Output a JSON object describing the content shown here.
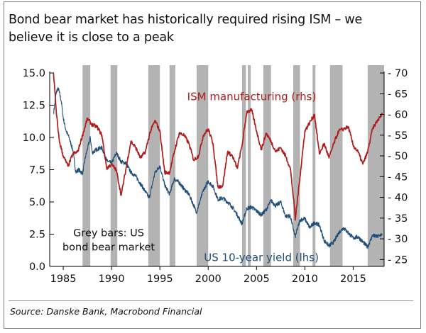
{
  "title_lines": [
    "Bond bear market has historically required rising ISM – we",
    "believe it is close to a peak"
  ],
  "source": "Source: Danske Bank, Macrobond Financial",
  "colors": {
    "us10y": "#1f4e79",
    "ism": "#b01c1c",
    "bars": "#b3b3b3",
    "axis": "#000000"
  },
  "chart_data": {
    "type": "line",
    "title": "Bond bear market has historically required rising ISM – we believe it is close to a peak",
    "x_range": [
      1983.6,
      2018.2
    ],
    "x_ticks": [
      1985,
      1990,
      1995,
      2000,
      2005,
      2010,
      2015
    ],
    "left_axis": {
      "label": "US 10-year yield (lhs)",
      "range": [
        0,
        15
      ],
      "ticks": [
        0.0,
        2.5,
        5.0,
        7.5,
        10.0,
        12.5,
        15.0
      ],
      "tick_labels": [
        "0.0",
        "2.5",
        "5.0",
        "7.5",
        "10.0",
        "12.5",
        "15.0"
      ]
    },
    "right_axis": {
      "label": "ISM manufacturing (rhs)",
      "range": [
        23.35,
        70
      ],
      "ticks": [
        25,
        30,
        35,
        40,
        45,
        50,
        55,
        60,
        65,
        70
      ],
      "tick_labels": [
        "25",
        "30",
        "35",
        "40",
        "45",
        "50",
        "55",
        "60",
        "65",
        "70"
      ]
    },
    "bear_market_periods": [
      [
        1987.0,
        1987.8
      ],
      [
        1989.9,
        1990.6
      ],
      [
        1993.8,
        1995.0
      ],
      [
        1996.0,
        1996.6
      ],
      [
        1998.8,
        2000.0
      ],
      [
        2003.5,
        2003.9
      ],
      [
        2004.1,
        2004.4
      ],
      [
        2005.7,
        2006.5
      ],
      [
        2008.8,
        2009.5
      ],
      [
        2010.8,
        2011.1
      ],
      [
        2012.6,
        2013.9
      ],
      [
        2016.5,
        2018.2
      ]
    ],
    "annotations": [
      {
        "text": "ISM manufacturing (rhs)",
        "x": 2004.5,
        "y_rhs": 64.3
      },
      {
        "text": "US 10-year yield (lhs)",
        "x": 2005.5,
        "y_lhs": 0.7
      },
      {
        "text": "Grey bars: US",
        "x": 1989.7,
        "y_lhs": 2.6
      },
      {
        "text": "bond bear market",
        "x": 1989.7,
        "y_lhs": 1.5
      }
    ],
    "series": [
      {
        "name": "US 10-year yield (lhs)",
        "axis": "left",
        "x": [
          1984.0,
          1984.3,
          1984.5,
          1984.8,
          1985.0,
          1985.3,
          1985.6,
          1986.0,
          1986.3,
          1986.6,
          1987.0,
          1987.3,
          1987.8,
          1988.0,
          1988.5,
          1989.0,
          1989.5,
          1990.0,
          1990.5,
          1991.0,
          1991.5,
          1992.0,
          1992.5,
          1993.0,
          1993.5,
          1993.9,
          1994.5,
          1995.0,
          1995.5,
          1996.0,
          1996.5,
          1997.0,
          1997.5,
          1998.0,
          1998.8,
          1999.0,
          1999.5,
          2000.0,
          2000.5,
          2001.0,
          2001.5,
          2002.0,
          2002.5,
          2003.0,
          2003.5,
          2004.0,
          2004.5,
          2005.0,
          2005.5,
          2006.0,
          2006.5,
          2007.0,
          2007.5,
          2008.0,
          2008.5,
          2008.9,
          2009.0,
          2009.5,
          2010.0,
          2010.5,
          2011.0,
          2011.5,
          2012.0,
          2012.5,
          2013.0,
          2013.5,
          2014.0,
          2014.5,
          2015.0,
          2015.5,
          2016.0,
          2016.5,
          2017.0,
          2017.5,
          2018.0
        ],
        "values": [
          11.9,
          13.6,
          13.8,
          12.8,
          11.5,
          10.5,
          10.0,
          9.0,
          7.3,
          7.5,
          7.2,
          8.5,
          10.0,
          8.8,
          9.1,
          9.2,
          8.2,
          8.0,
          8.8,
          8.1,
          8.0,
          7.3,
          7.0,
          6.4,
          5.8,
          5.3,
          7.3,
          7.8,
          6.3,
          5.6,
          6.8,
          6.5,
          6.0,
          5.6,
          4.2,
          4.7,
          5.9,
          6.6,
          6.2,
          5.2,
          5.3,
          5.0,
          4.6,
          4.0,
          3.3,
          4.5,
          4.6,
          4.3,
          4.0,
          4.4,
          5.1,
          4.7,
          5.0,
          3.9,
          3.9,
          2.6,
          2.3,
          3.6,
          3.7,
          3.0,
          3.4,
          3.2,
          2.0,
          1.6,
          1.9,
          2.6,
          3.0,
          2.6,
          2.2,
          2.3,
          1.9,
          1.5,
          2.4,
          2.3,
          2.5
        ]
      },
      {
        "name": "ISM manufacturing (rhs)",
        "axis": "right",
        "x": [
          1984.0,
          1984.3,
          1984.6,
          1985.0,
          1985.5,
          1986.0,
          1986.5,
          1987.0,
          1987.5,
          1988.0,
          1988.5,
          1989.0,
          1989.5,
          1990.0,
          1990.5,
          1991.0,
          1991.5,
          1992.0,
          1992.5,
          1993.0,
          1993.5,
          1994.0,
          1994.5,
          1995.0,
          1995.5,
          1996.0,
          1996.5,
          1997.0,
          1997.5,
          1998.0,
          1998.5,
          1999.0,
          1999.5,
          2000.0,
          2000.5,
          2001.0,
          2001.5,
          2002.0,
          2002.5,
          2003.0,
          2003.5,
          2004.0,
          2004.5,
          2005.0,
          2005.5,
          2006.0,
          2006.5,
          2007.0,
          2007.5,
          2008.0,
          2008.5,
          2008.9,
          2009.0,
          2009.5,
          2010.0,
          2010.5,
          2011.0,
          2011.5,
          2012.0,
          2012.5,
          2013.0,
          2013.5,
          2014.0,
          2014.5,
          2015.0,
          2015.5,
          2016.0,
          2016.5,
          2017.0,
          2017.5,
          2018.0
        ],
        "values": [
          69.9,
          60.0,
          53.5,
          50.0,
          47.5,
          50.5,
          51.0,
          55.0,
          59.0,
          57.5,
          57.0,
          55.0,
          47.0,
          48.0,
          46.5,
          40.5,
          47.0,
          53.5,
          52.0,
          49.5,
          51.0,
          55.8,
          58.5,
          56.0,
          46.0,
          46.0,
          51.0,
          55.5,
          55.0,
          53.0,
          49.0,
          50.0,
          55.0,
          56.5,
          53.0,
          42.5,
          42.8,
          51.0,
          50.0,
          47.0,
          52.5,
          60.7,
          61.0,
          56.0,
          51.5,
          55.5,
          53.5,
          51.0,
          52.0,
          50.0,
          47.0,
          38.0,
          34.5,
          45.0,
          56.0,
          58.0,
          60.0,
          50.5,
          53.0,
          49.5,
          53.0,
          56.0,
          56.5,
          57.0,
          52.5,
          51.0,
          48.0,
          51.0,
          56.5,
          58.5,
          60.0
        ]
      }
    ]
  }
}
